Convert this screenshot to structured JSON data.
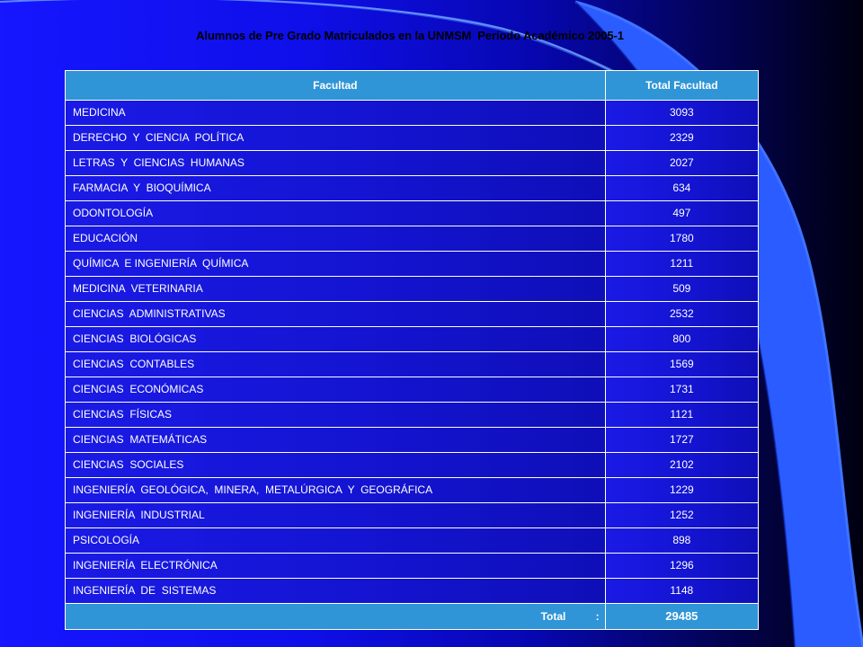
{
  "slide": {
    "title": "Alumnos de Pre Grado Matriculados en la UNMSM  Período Académico 2005-1"
  },
  "table": {
    "headers": [
      "Facultad",
      "Total Facultad"
    ],
    "rows": [
      {
        "facultad": "MEDICINA",
        "total": "3093"
      },
      {
        "facultad": "DERECHO  Y  CIENCIA  POLÍTICA",
        "total": "2329"
      },
      {
        "facultad": "LETRAS  Y  CIENCIAS  HUMANAS",
        "total": "2027"
      },
      {
        "facultad": "FARMACIA  Y  BIOQUÍMICA",
        "total": "634"
      },
      {
        "facultad": "ODONTOLOGÍA",
        "total": "497"
      },
      {
        "facultad": "EDUCACIÓN",
        "total": "1780"
      },
      {
        "facultad": "QUÍMICA  E INGENIERÍA  QUÍMICA",
        "total": "1211"
      },
      {
        "facultad": "MEDICINA  VETERINARIA",
        "total": "509"
      },
      {
        "facultad": "CIENCIAS  ADMINISTRATIVAS",
        "total": "2532"
      },
      {
        "facultad": "CIENCIAS  BIOLÓGICAS",
        "total": "800"
      },
      {
        "facultad": "CIENCIAS  CONTABLES",
        "total": "1569"
      },
      {
        "facultad": "CIENCIAS  ECONÓMICAS",
        "total": "1731"
      },
      {
        "facultad": "CIENCIAS  FÍSICAS",
        "total": "1121"
      },
      {
        "facultad": "CIENCIAS  MATEMÁTICAS",
        "total": "1727"
      },
      {
        "facultad": "CIENCIAS  SOCIALES",
        "total": "2102"
      },
      {
        "facultad": "INGENIERÍA  GEOLÓGICA,  MINERA,  METALÚRGICA  Y  GEOGRÁFICA",
        "total": "1229"
      },
      {
        "facultad": "INGENIERÍA  INDUSTRIAL",
        "total": "1252"
      },
      {
        "facultad": "PSICOLOGÍA",
        "total": "898"
      },
      {
        "facultad": "INGENIERÍA  ELECTRÓNICA",
        "total": "1296"
      },
      {
        "facultad": "INGENIERÍA  DE  SISTEMAS",
        "total": "1148"
      }
    ],
    "total_label": "Total          :",
    "total_value": "29485"
  },
  "colors": {
    "header_fill": "#2f95d6",
    "cell_fill": "#1616dc",
    "background_left": "#1616ff",
    "background_right": "#000010",
    "swoosh": "#2a5cff"
  }
}
